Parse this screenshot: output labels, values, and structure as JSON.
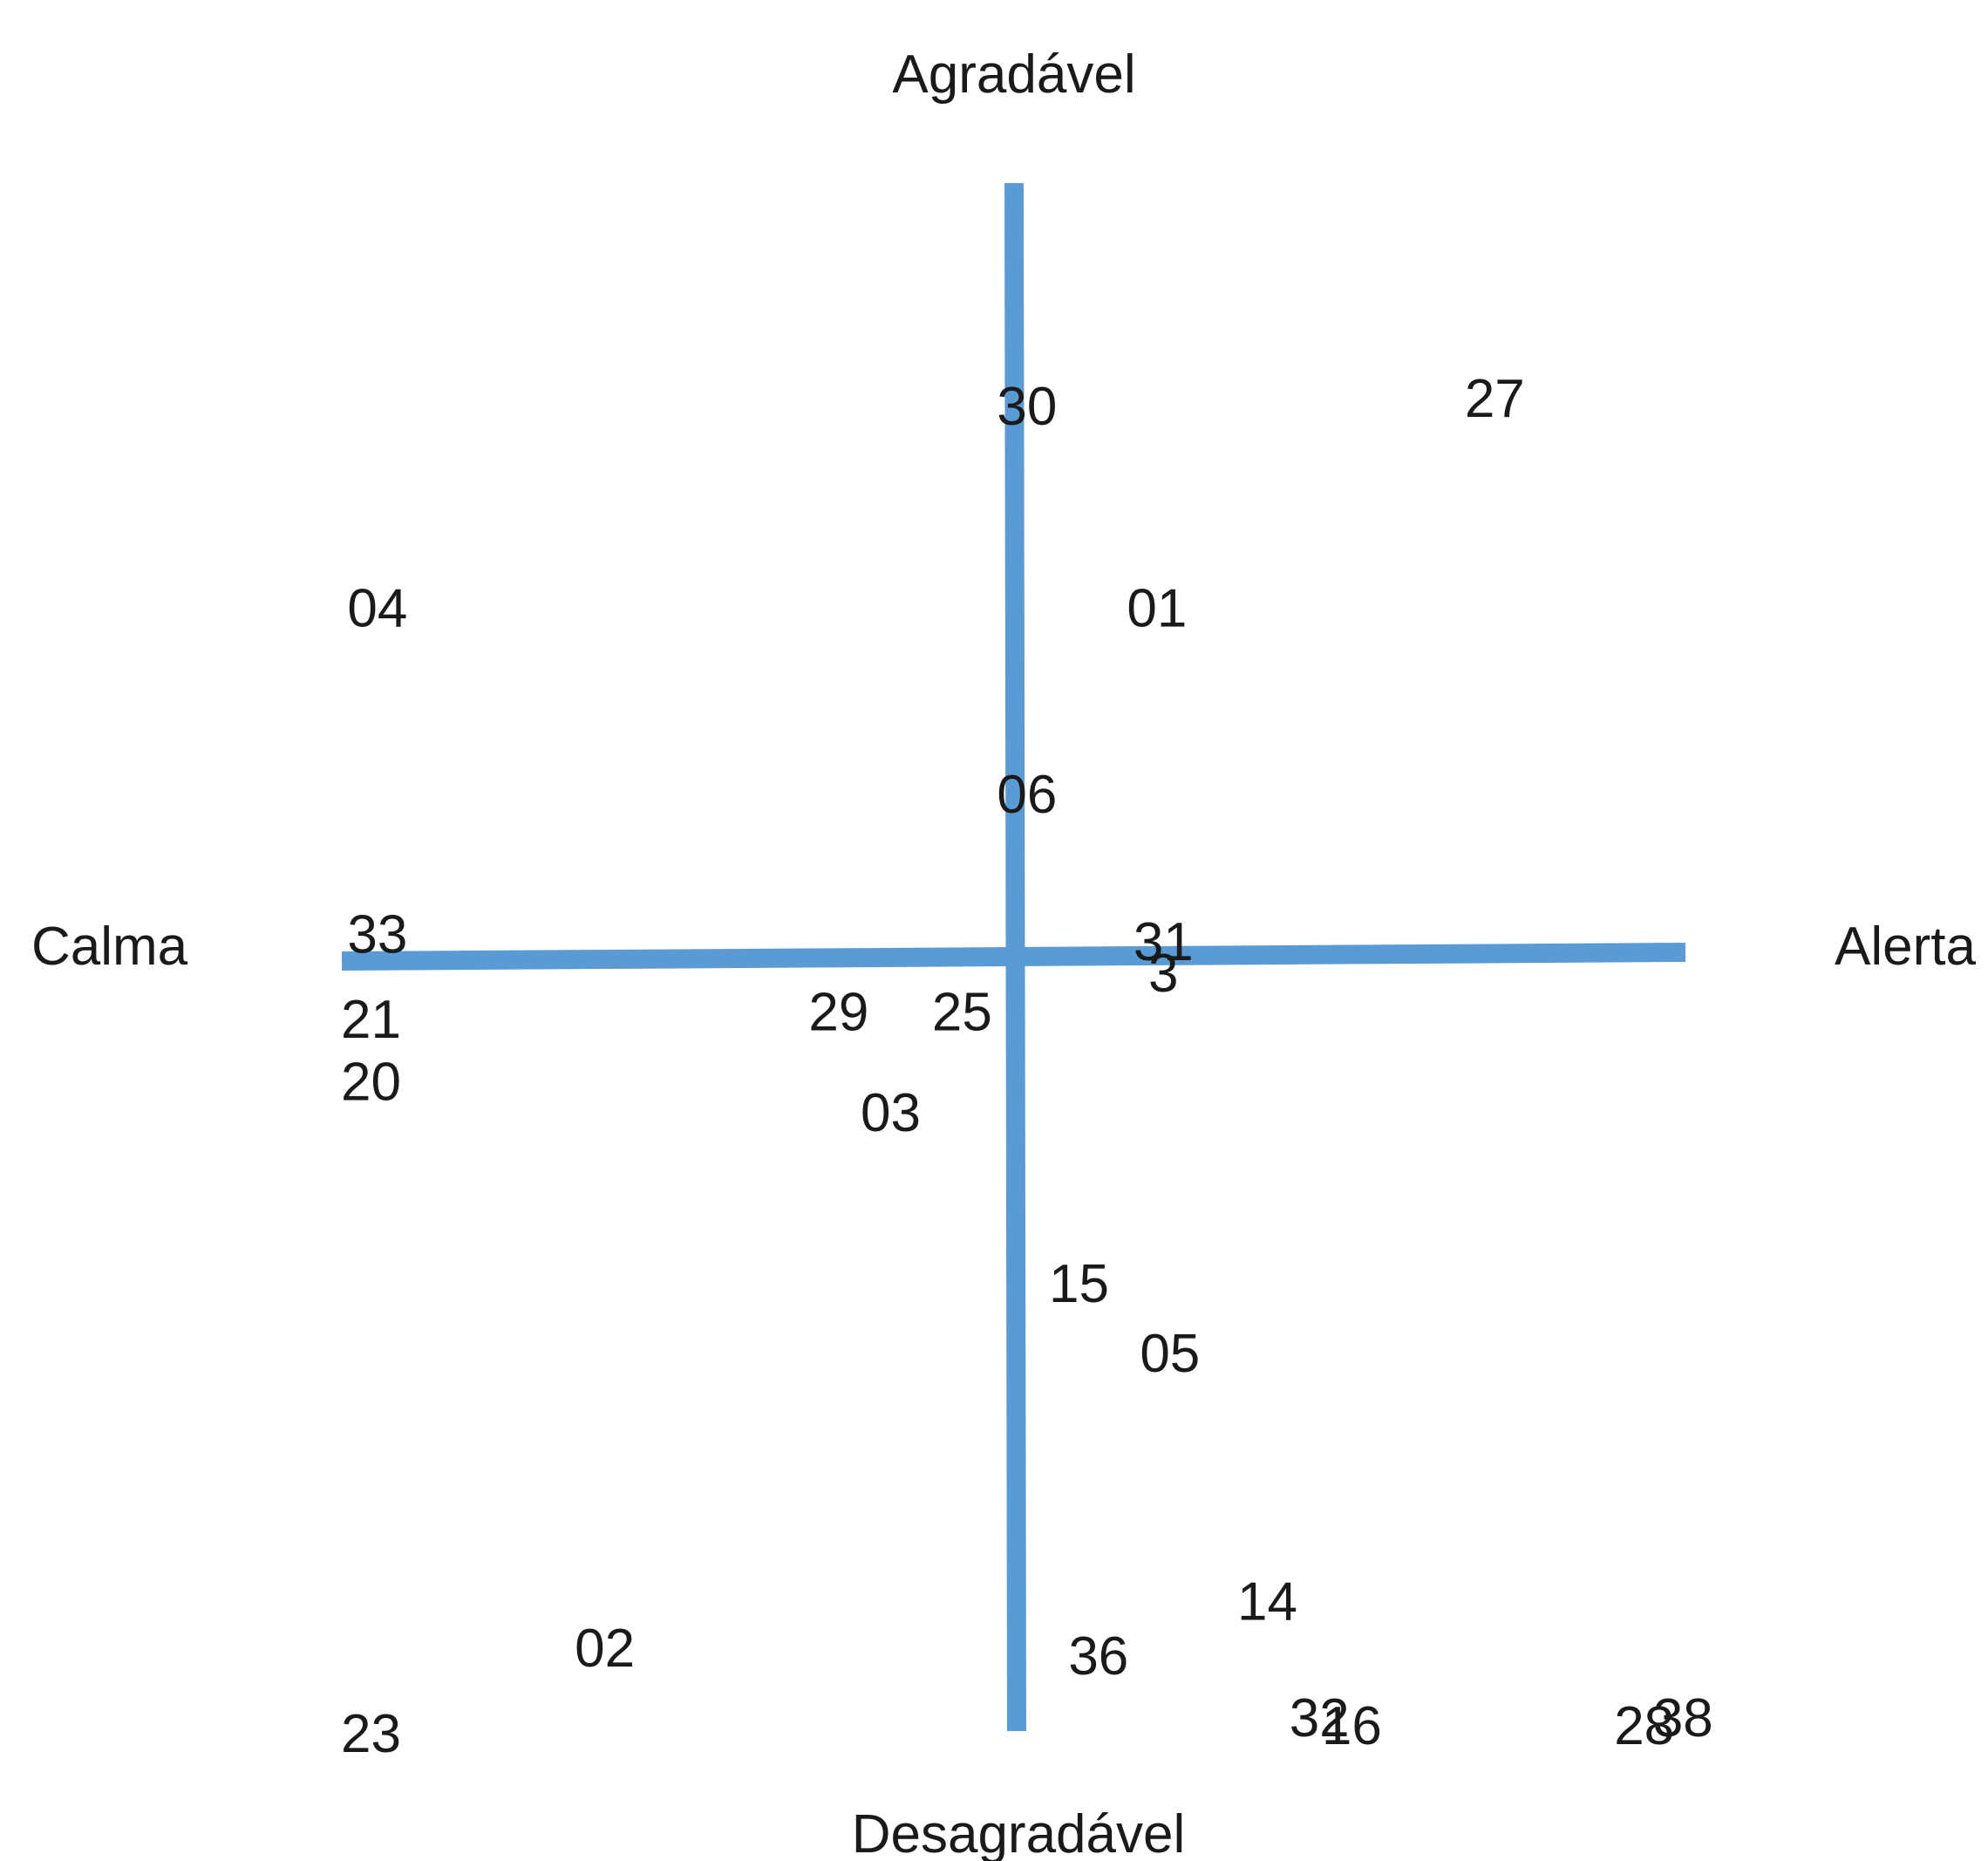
{
  "chart_data": {
    "type": "scatter",
    "title": "",
    "axes": {
      "top_label": "Agradável",
      "bottom_label": "Desagradável",
      "left_label": "Calma",
      "right_label": "Alerta",
      "xlim": [
        -1,
        1
      ],
      "ylim": [
        -1,
        1
      ],
      "grid": false
    },
    "line_color": "#5b9bd5",
    "points": [
      {
        "label": "30",
        "x": 0.02,
        "y": 0.71
      },
      {
        "label": "27",
        "x": 0.74,
        "y": 0.72
      },
      {
        "label": "04",
        "x": -0.98,
        "y": 0.45
      },
      {
        "label": "01",
        "x": 0.22,
        "y": 0.45
      },
      {
        "label": "06",
        "x": 0.02,
        "y": 0.21
      },
      {
        "label": "33",
        "x": -0.98,
        "y": 0.03
      },
      {
        "label": "31",
        "x": 0.23,
        "y": 0.02
      },
      {
        "label": "3",
        "x": 0.23,
        "y": -0.02
      },
      {
        "label": "29",
        "x": -0.27,
        "y": -0.07
      },
      {
        "label": "25",
        "x": -0.08,
        "y": -0.07
      },
      {
        "label": "21",
        "x": -0.99,
        "y": -0.08
      },
      {
        "label": "20",
        "x": -0.99,
        "y": -0.16
      },
      {
        "label": "03",
        "x": -0.19,
        "y": -0.2
      },
      {
        "label": "15",
        "x": 0.1,
        "y": -0.42
      },
      {
        "label": "05",
        "x": 0.24,
        "y": -0.51
      },
      {
        "label": "14",
        "x": 0.39,
        "y": -0.83
      },
      {
        "label": "36",
        "x": 0.13,
        "y": -0.9
      },
      {
        "label": "02",
        "x": -0.63,
        "y": -0.89
      },
      {
        "label": "32",
        "x": 0.47,
        "y": -0.98
      },
      {
        "label": "16",
        "x": 0.52,
        "y": -0.99
      },
      {
        "label": "28",
        "x": 0.97,
        "y": -0.99
      },
      {
        "label": "38",
        "x": 1.03,
        "y": -0.98
      },
      {
        "label": "23",
        "x": -0.99,
        "y": -1.0
      }
    ]
  }
}
